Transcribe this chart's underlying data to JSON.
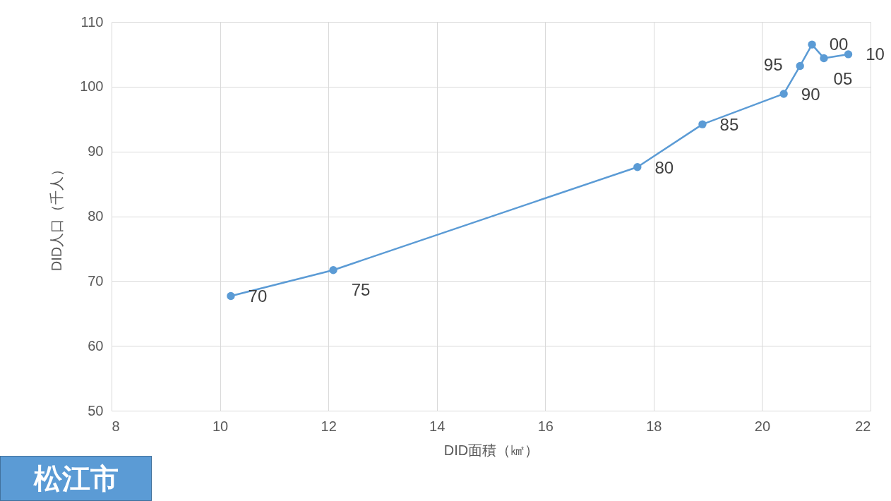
{
  "chart_data": {
    "type": "line",
    "xlabel": "DID面積（㎢）",
    "ylabel": "DID人口（千人）",
    "x": [
      10.2,
      12.09,
      17.7,
      18.9,
      20.4,
      20.7,
      20.92,
      21.14,
      21.59
    ],
    "series": [
      {
        "color": "#5b9bd5",
        "values": [
          67.7,
          71.7,
          87.6,
          94.2,
          98.9,
          103.2,
          106.5,
          104.4,
          105.0
        ]
      }
    ],
    "xlim": [
      8,
      22
    ],
    "xticks": [
      8,
      10,
      12,
      14,
      16,
      18,
      20,
      22
    ],
    "ylim": [
      50,
      110
    ],
    "yticks": [
      50,
      60,
      70,
      80,
      90,
      100,
      110
    ],
    "grid": true,
    "marker": "circle",
    "line_style": "solid",
    "annotations": [
      {
        "text": "70",
        "x": 10.2,
        "y": 67.7
      },
      {
        "text": "75",
        "x": 12.09,
        "y": 71.7
      },
      {
        "text": "80",
        "x": 17.7,
        "y": 87.6
      },
      {
        "text": "85",
        "x": 18.9,
        "y": 94.2
      },
      {
        "text": "90",
        "x": 20.4,
        "y": 98.9
      },
      {
        "text": "95",
        "x": 20.7,
        "y": 103.2
      },
      {
        "text": "00",
        "x": 20.92,
        "y": 106.5
      },
      {
        "text": "05",
        "x": 21.14,
        "y": 104.4
      },
      {
        "text": "10",
        "x": 21.59,
        "y": 105.0
      },
      "松江市"
    ]
  }
}
